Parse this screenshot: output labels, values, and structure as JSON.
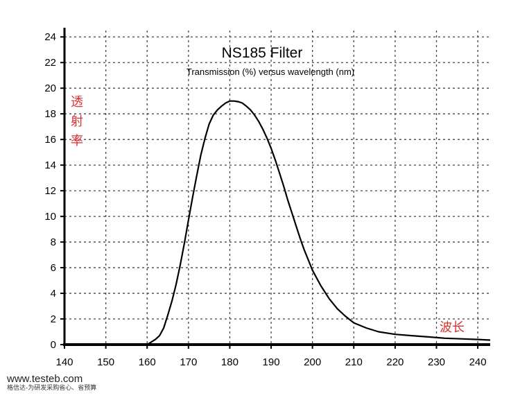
{
  "chart_data": {
    "type": "line",
    "title": "NS185 Filter",
    "subtitle": "Transmission (%) versus wavelength (nm)",
    "ylabel": "透射率",
    "xlabel": "波长",
    "xlim": [
      140,
      243
    ],
    "ylim": [
      0,
      24.5
    ],
    "x_ticks": [
      140,
      150,
      160,
      170,
      180,
      190,
      200,
      210,
      220,
      230,
      240
    ],
    "y_ticks": [
      0,
      2,
      4,
      6,
      8,
      10,
      12,
      14,
      16,
      18,
      20,
      22,
      24
    ],
    "grid": true,
    "series": [
      {
        "x": [
          160,
          161,
          162,
          163,
          164,
          165,
          166,
          167,
          168,
          169,
          170,
          171,
          172,
          173,
          174,
          175,
          176,
          177,
          178,
          179,
          180,
          181,
          182,
          183,
          184,
          185,
          186,
          187,
          188,
          189,
          190,
          191,
          192,
          193,
          194,
          195,
          196,
          197,
          198,
          199,
          200,
          202,
          204,
          206,
          208,
          210,
          213,
          216,
          220,
          224,
          228,
          232,
          236,
          240,
          243
        ],
        "y": [
          0,
          0.2,
          0.4,
          0.7,
          1.3,
          2.3,
          3.4,
          4.7,
          6.2,
          7.9,
          9.7,
          11.5,
          13.2,
          14.8,
          16.1,
          17.2,
          17.9,
          18.3,
          18.6,
          18.85,
          19.0,
          19.0,
          18.95,
          18.85,
          18.6,
          18.3,
          17.9,
          17.4,
          16.8,
          16.1,
          15.3,
          14.4,
          13.4,
          12.4,
          11.3,
          10.3,
          9.3,
          8.3,
          7.4,
          6.6,
          5.8,
          4.6,
          3.6,
          2.8,
          2.2,
          1.7,
          1.3,
          1.0,
          0.8,
          0.7,
          0.6,
          0.5,
          0.45,
          0.4,
          0.35
        ]
      }
    ]
  },
  "watermark": {
    "url": "www.testeb.com",
    "tagline": "格信达-为研发采购省心、省预算"
  }
}
